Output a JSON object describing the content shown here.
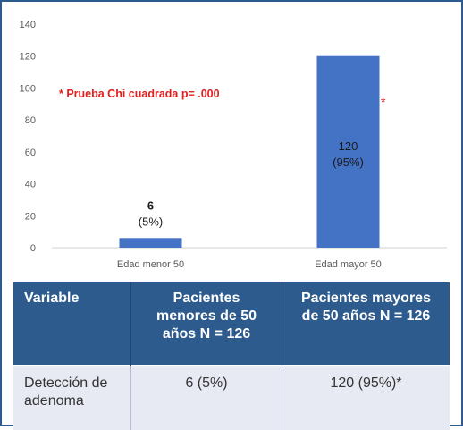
{
  "chart_data": {
    "type": "bar",
    "categories": [
      "Edad menor 50",
      "Edad mayor 50"
    ],
    "values": [
      6,
      120
    ],
    "value_labels": [
      [
        "6",
        "(5%)"
      ],
      [
        "120",
        "(95%)"
      ]
    ],
    "significance_marker": "*",
    "annotation": "* Prueba Chi cuadrada p= .000",
    "ylim": [
      0,
      140
    ],
    "yticks": [
      0,
      20,
      40,
      60,
      80,
      100,
      120,
      140
    ],
    "grid": false,
    "bar_color": "#4472c4",
    "annotation_color": "#e02020"
  },
  "table": {
    "headers": [
      "Variable",
      "Pacientes menores de 50 años N = 126",
      "Pacientes mayores de 50 años N = 126"
    ],
    "rows": [
      [
        "Detección de adenoma",
        "6 (5%)",
        "120 (95%)*"
      ]
    ],
    "header_color": "#2e5b8e",
    "row_color": "#e8eaf3"
  }
}
